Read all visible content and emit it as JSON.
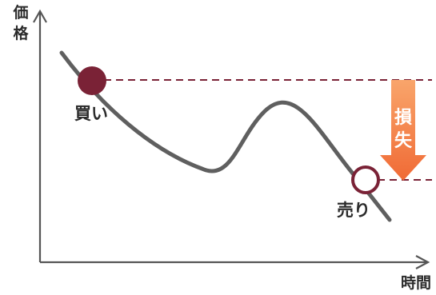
{
  "axes": {
    "y_label_top": "価",
    "y_label_bottom": "格",
    "x_label": "時間"
  },
  "markers": {
    "buy_label": "買い",
    "sell_label": "売り"
  },
  "loss": {
    "label_top": "損",
    "label_bottom": "失"
  },
  "colors": {
    "buy_fill": "#7a2236",
    "sell_stroke": "#7a2236",
    "dashed_line": "#7a2236",
    "price_line": "#5f5f5f",
    "axis": "#555555",
    "loss_arrow_top": "#f9a56b",
    "loss_arrow_bottom": "#f06a35"
  }
}
